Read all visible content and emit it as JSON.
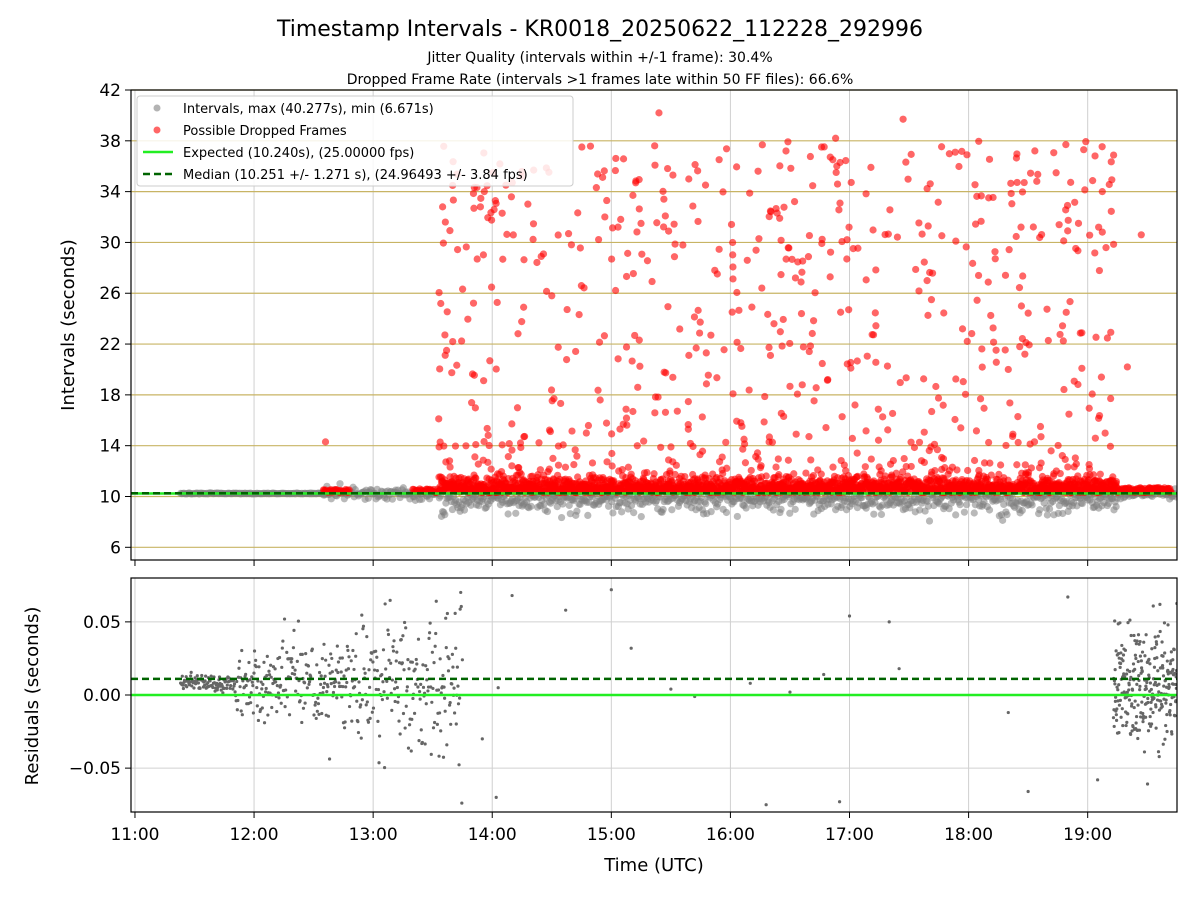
{
  "title": "Timestamp Intervals - KR0018_20250622_112228_292996",
  "subtitle_lines": [
    "Jitter Quality (intervals within +/-1 frame): 30.4%",
    "Dropped Frame Rate (intervals >1 frames late within 50 FF files): 66.6%"
  ],
  "colors": {
    "intervals": "#808080",
    "dropped": "#ff0000",
    "expected": "#22ee22",
    "median": "#006400",
    "hgrid": "#c8b464",
    "grid": "#d0d0d0"
  },
  "chart_data": [
    {
      "type": "scatter",
      "panel": "top",
      "ylabel": "Intervals (seconds)",
      "xlabel": "",
      "ylim": [
        5,
        42
      ],
      "yticks": [
        6,
        10,
        14,
        18,
        22,
        26,
        30,
        34,
        38,
        42
      ],
      "xlim": [
        "10:58",
        "19:45"
      ],
      "grid": true,
      "legend_position": "top-left",
      "legend": [
        {
          "name": "Intervals, max (40.277s), min (6.671s)",
          "marker": "circle",
          "color": "#808080"
        },
        {
          "name": "Possible Dropped Frames",
          "marker": "circle",
          "color": "#ff0000"
        },
        {
          "name": "Expected (10.240s), (25.00000 fps)",
          "marker": "solid-line",
          "color": "#22ee22"
        },
        {
          "name": "Median (10.251 +/- 1.271 s), (24.96493 +/- 3.84 fps)",
          "marker": "dashed-line",
          "color": "#006400"
        }
      ],
      "expected_y": 10.24,
      "median_y": 10.251,
      "x_range": [
        "11:23",
        "19:45"
      ],
      "series": [
        {
          "name": "Intervals, max (40.277s), min (6.671s)",
          "min": 6.671,
          "max": 40.277,
          "center": 10.24,
          "sample_points": [
            {
              "x": "11:25",
              "y": 10.24
            },
            {
              "x": "12:10",
              "y": 10.3
            },
            {
              "x": "12:50",
              "y": 10.9
            },
            {
              "x": "13:10",
              "y": 11.2
            },
            {
              "x": "13:40",
              "y": 8.5
            },
            {
              "x": "14:10",
              "y": 7.5
            },
            {
              "x": "15:20",
              "y": 6.7
            },
            {
              "x": "16:30",
              "y": 8.0
            },
            {
              "x": "17:30",
              "y": 7.8
            },
            {
              "x": "18:30",
              "y": 7.6
            },
            {
              "x": "19:40",
              "y": 10.7
            }
          ]
        },
        {
          "name": "Possible Dropped Frames",
          "range": [
            "12:35",
            "19:45"
          ],
          "sample_points": [
            {
              "x": "12:36",
              "y": 14.3
            },
            {
              "x": "13:35",
              "y": 32.8
            },
            {
              "x": "13:37",
              "y": 21.5
            },
            {
              "x": "14:05",
              "y": 32.3
            },
            {
              "x": "14:30",
              "y": 25.8
            },
            {
              "x": "15:24",
              "y": 40.2
            },
            {
              "x": "16:28",
              "y": 37.2
            },
            {
              "x": "16:53",
              "y": 38.2
            },
            {
              "x": "17:27",
              "y": 39.7
            },
            {
              "x": "18:20",
              "y": 20.0
            },
            {
              "x": "18:49",
              "y": 37.7
            },
            {
              "x": "18:58",
              "y": 37.3
            },
            {
              "x": "19:27",
              "y": 30.6
            },
            {
              "x": "19:20",
              "y": 20.2
            }
          ]
        }
      ]
    },
    {
      "type": "scatter",
      "panel": "bottom",
      "ylabel": "Residuals (seconds)",
      "xlabel": "Time (UTC)",
      "ylim": [
        -0.08,
        0.08
      ],
      "yticks": [
        0.05,
        0.0,
        -0.05
      ],
      "ytick_labels": [
        "0.05",
        "0.00",
        "−0.05"
      ],
      "xticks": [
        "11:00",
        "12:00",
        "13:00",
        "14:00",
        "15:00",
        "16:00",
        "17:00",
        "18:00",
        "19:00"
      ],
      "xlim": [
        "10:58",
        "19:45"
      ],
      "grid": true,
      "expected_y": 0.0,
      "median_y": 0.011,
      "series": [
        {
          "name": "Residuals",
          "clusters": [
            {
              "range": [
                "11:23",
                "13:45"
              ],
              "spread": 0.08
            },
            {
              "range": [
                "19:13",
                "19:45"
              ],
              "spread": 0.08
            }
          ]
        }
      ]
    }
  ]
}
